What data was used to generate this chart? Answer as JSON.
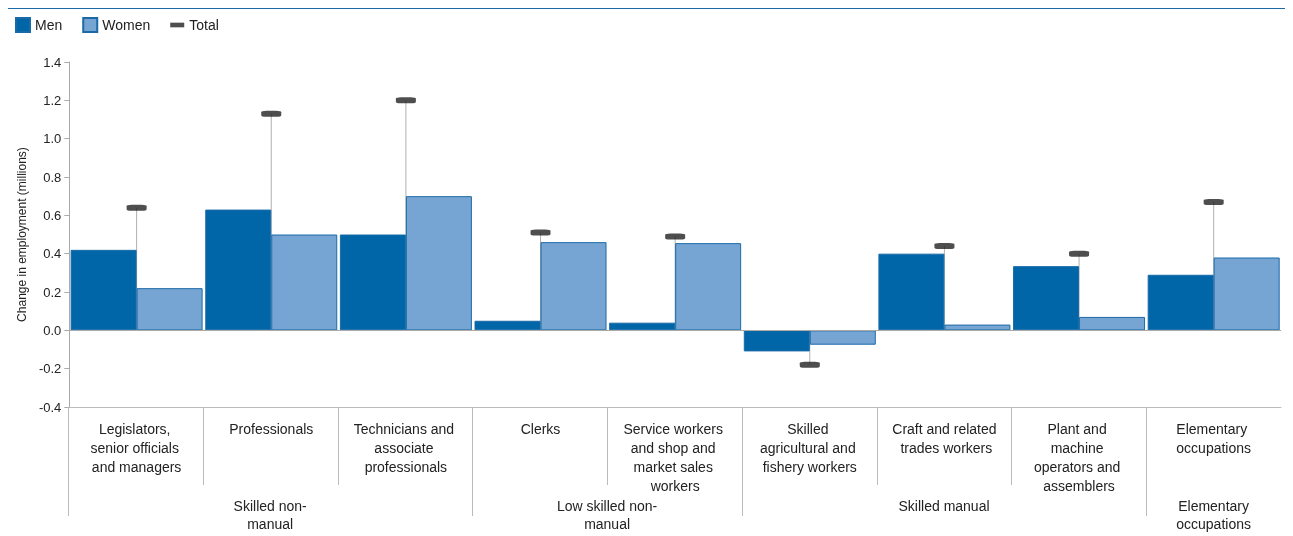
{
  "chart_data": {
    "type": "bar",
    "ylabel": "Change in employment (millions)",
    "categories": [
      "Legislators, senior officials and managers",
      "Professionals",
      "Technicians and associate professionals",
      "Clerks",
      "Service workers and shop and market sales workers",
      "Skilled agricultural and fishery workers",
      "Craft and related trades workers",
      "Plant and machine operators and assemblers",
      "Elementary occupations"
    ],
    "series": [
      {
        "name": "Men",
        "color": "#0066a8",
        "values": [
          0.42,
          0.63,
          0.5,
          0.05,
          0.04,
          -0.11,
          0.4,
          0.335,
          0.29
        ]
      },
      {
        "name": "Women",
        "color": "#77a5d3",
        "values": [
          0.22,
          0.5,
          0.7,
          0.46,
          0.455,
          -0.075,
          0.03,
          0.07,
          0.38
        ]
      },
      {
        "name": "Total",
        "type": "lollipop",
        "color": "#222222",
        "values": [
          0.64,
          1.13,
          1.2,
          0.51,
          0.49,
          -0.18,
          0.44,
          0.4,
          0.67
        ]
      }
    ],
    "ylim": [
      -0.4,
      1.4
    ],
    "yticks": [
      {
        "value": -0.4,
        "label": "-0.4"
      },
      {
        "value": -0.2,
        "label": "-0.2"
      },
      {
        "value": 0,
        "label": "0.0"
      },
      {
        "value": 0.2,
        "label": "0.2"
      },
      {
        "value": 0.4,
        "label": "0.4"
      },
      {
        "value": 0.6,
        "label": "0.6"
      },
      {
        "value": 0.8,
        "label": "0.8"
      },
      {
        "value": 1,
        "label": "1.0"
      },
      {
        "value": 1.2,
        "label": "1.2"
      },
      {
        "value": 1.4,
        "label": "1.4"
      }
    ],
    "ref_lines": [
      {
        "axis": "y",
        "value": 0,
        "color": "#aaaaaa"
      }
    ],
    "legend": "top left",
    "annotations": [
      "Skilled non-manual",
      "Low skilled non-manual",
      "Skilled manual",
      "Elementary occupations"
    ]
  }
}
